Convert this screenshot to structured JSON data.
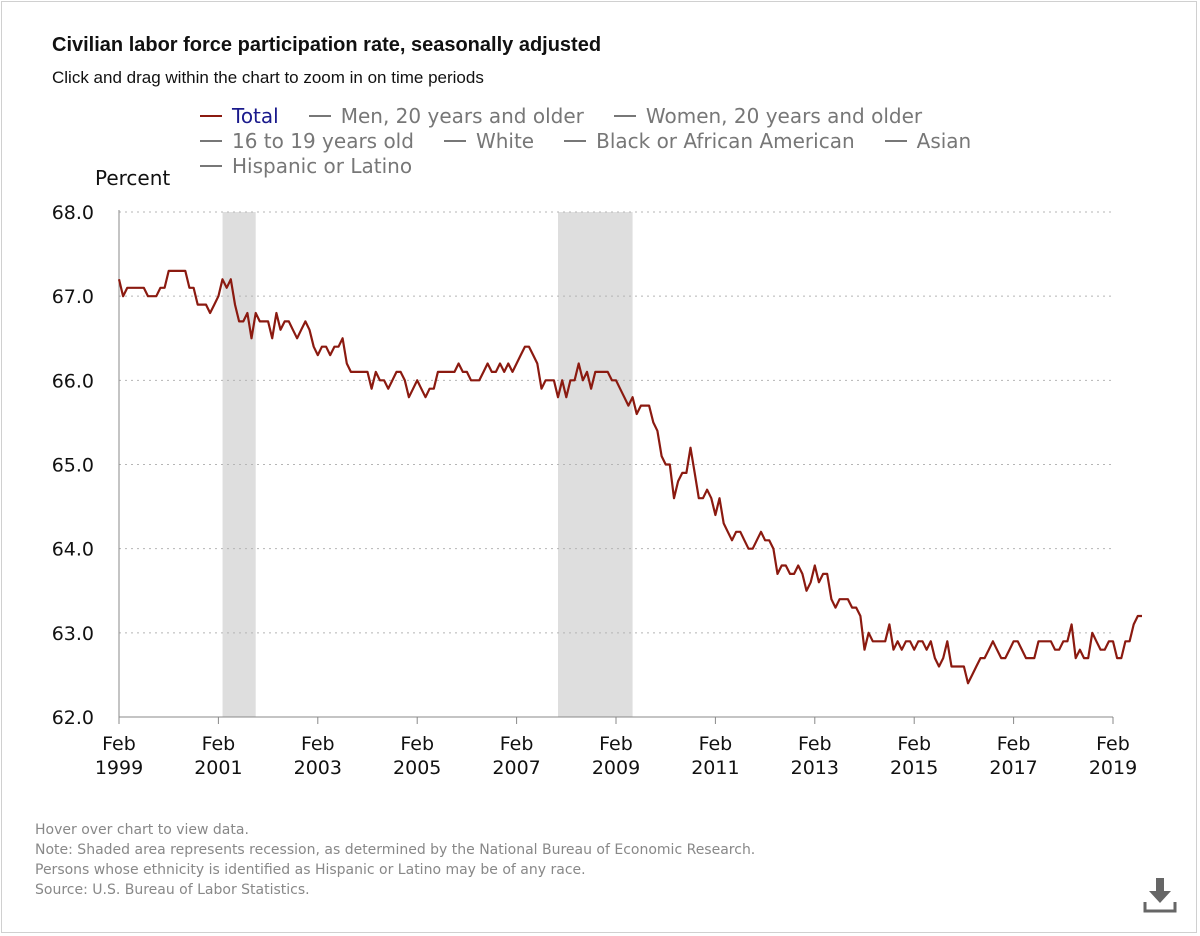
{
  "title": "Civilian labor force participation rate, seasonally adjusted",
  "subtitle": "Click and drag within the chart to zoom in on time periods",
  "legend": {
    "rows": [
      [
        {
          "label": "Total",
          "color": "#8b1a10",
          "active": true
        },
        {
          "label": "Men, 20 years and older",
          "color": "#777777",
          "active": false
        },
        {
          "label": "Women, 20 years and older",
          "color": "#777777",
          "active": false
        }
      ],
      [
        {
          "label": "16 to 19 years old",
          "color": "#777777",
          "active": false
        },
        {
          "label": "White",
          "color": "#777777",
          "active": false
        },
        {
          "label": "Black or African American",
          "color": "#777777",
          "active": false
        },
        {
          "label": "Asian",
          "color": "#777777",
          "active": false
        }
      ],
      [
        {
          "label": "Hispanic or Latino",
          "color": "#777777",
          "active": false
        }
      ]
    ]
  },
  "footer": {
    "lines": [
      "Hover over chart to view data.",
      "Note: Shaded area represents recession, as determined by the National Bureau of Economic Research.",
      "Persons whose ethnicity is identified as Hispanic or Latino may be of any race.",
      "Source: U.S. Bureau of Labor Statistics."
    ]
  },
  "icons": {
    "download": "download-icon"
  },
  "chart_data": {
    "type": "line",
    "title": "Civilian labor force participation rate, seasonally adjusted",
    "ylabel": "Percent",
    "xlabel": "",
    "ylim": [
      62.0,
      68.0
    ],
    "xlim": [
      "1999-02",
      "2019-02"
    ],
    "yticks": [
      "62.0",
      "63.0",
      "64.0",
      "65.0",
      "66.0",
      "67.0",
      "68.0"
    ],
    "xticks": [
      {
        "month": "Feb",
        "year": "1999"
      },
      {
        "month": "Feb",
        "year": "2001"
      },
      {
        "month": "Feb",
        "year": "2003"
      },
      {
        "month": "Feb",
        "year": "2005"
      },
      {
        "month": "Feb",
        "year": "2007"
      },
      {
        "month": "Feb",
        "year": "2009"
      },
      {
        "month": "Feb",
        "year": "2011"
      },
      {
        "month": "Feb",
        "year": "2013"
      },
      {
        "month": "Feb",
        "year": "2015"
      },
      {
        "month": "Feb",
        "year": "2017"
      },
      {
        "month": "Feb",
        "year": "2019"
      }
    ],
    "grid": "horizontal dotted",
    "legend_position": "top",
    "recessions": [
      {
        "start": "2001-03",
        "end": "2001-11"
      },
      {
        "start": "2007-12",
        "end": "2009-06"
      }
    ],
    "series": [
      {
        "name": "Total",
        "color": "#8b1a10",
        "points": [
          [
            "1999-02",
            67.2
          ],
          [
            "1999-03",
            67.0
          ],
          [
            "1999-04",
            67.1
          ],
          [
            "1999-05",
            67.1
          ],
          [
            "1999-06",
            67.1
          ],
          [
            "1999-07",
            67.1
          ],
          [
            "1999-08",
            67.1
          ],
          [
            "1999-09",
            67.0
          ],
          [
            "1999-10",
            67.0
          ],
          [
            "1999-11",
            67.0
          ],
          [
            "1999-12",
            67.1
          ],
          [
            "2000-01",
            67.1
          ],
          [
            "2000-02",
            67.3
          ],
          [
            "2000-03",
            67.3
          ],
          [
            "2000-04",
            67.3
          ],
          [
            "2000-05",
            67.3
          ],
          [
            "2000-06",
            67.3
          ],
          [
            "2000-07",
            67.1
          ],
          [
            "2000-08",
            67.1
          ],
          [
            "2000-09",
            66.9
          ],
          [
            "2000-10",
            66.9
          ],
          [
            "2000-11",
            66.9
          ],
          [
            "2000-12",
            66.8
          ],
          [
            "2001-01",
            66.9
          ],
          [
            "2001-02",
            67.0
          ],
          [
            "2001-03",
            67.2
          ],
          [
            "2001-04",
            67.1
          ],
          [
            "2001-05",
            67.2
          ],
          [
            "2001-06",
            66.9
          ],
          [
            "2001-07",
            66.7
          ],
          [
            "2001-08",
            66.7
          ],
          [
            "2001-09",
            66.8
          ],
          [
            "2001-10",
            66.5
          ],
          [
            "2001-11",
            66.8
          ],
          [
            "2001-12",
            66.7
          ],
          [
            "2002-01",
            66.7
          ],
          [
            "2002-02",
            66.7
          ],
          [
            "2002-03",
            66.5
          ],
          [
            "2002-04",
            66.8
          ],
          [
            "2002-05",
            66.6
          ],
          [
            "2002-06",
            66.7
          ],
          [
            "2002-07",
            66.7
          ],
          [
            "2002-08",
            66.6
          ],
          [
            "2002-09",
            66.5
          ],
          [
            "2002-10",
            66.6
          ],
          [
            "2002-11",
            66.7
          ],
          [
            "2002-12",
            66.6
          ],
          [
            "2003-01",
            66.4
          ],
          [
            "2003-02",
            66.3
          ],
          [
            "2003-03",
            66.4
          ],
          [
            "2003-04",
            66.4
          ],
          [
            "2003-05",
            66.3
          ],
          [
            "2003-06",
            66.4
          ],
          [
            "2003-07",
            66.4
          ],
          [
            "2003-08",
            66.5
          ],
          [
            "2003-09",
            66.2
          ],
          [
            "2003-10",
            66.1
          ],
          [
            "2003-11",
            66.1
          ],
          [
            "2003-12",
            66.1
          ],
          [
            "2004-01",
            66.1
          ],
          [
            "2004-02",
            66.1
          ],
          [
            "2004-03",
            65.9
          ],
          [
            "2004-04",
            66.1
          ],
          [
            "2004-05",
            66.0
          ],
          [
            "2004-06",
            66.0
          ],
          [
            "2004-07",
            65.9
          ],
          [
            "2004-08",
            66.0
          ],
          [
            "2004-09",
            66.1
          ],
          [
            "2004-10",
            66.1
          ],
          [
            "2004-11",
            66.0
          ],
          [
            "2004-12",
            65.8
          ],
          [
            "2005-01",
            65.9
          ],
          [
            "2005-02",
            66.0
          ],
          [
            "2005-03",
            65.9
          ],
          [
            "2005-04",
            65.8
          ],
          [
            "2005-05",
            65.9
          ],
          [
            "2005-06",
            65.9
          ],
          [
            "2005-07",
            66.1
          ],
          [
            "2005-08",
            66.1
          ],
          [
            "2005-09",
            66.1
          ],
          [
            "2005-10",
            66.1
          ],
          [
            "2005-11",
            66.1
          ],
          [
            "2005-12",
            66.2
          ],
          [
            "2006-01",
            66.1
          ],
          [
            "2006-02",
            66.1
          ],
          [
            "2006-03",
            66.0
          ],
          [
            "2006-04",
            66.0
          ],
          [
            "2006-05",
            66.0
          ],
          [
            "2006-06",
            66.1
          ],
          [
            "2006-07",
            66.2
          ],
          [
            "2006-08",
            66.1
          ],
          [
            "2006-09",
            66.1
          ],
          [
            "2006-10",
            66.2
          ],
          [
            "2006-11",
            66.1
          ],
          [
            "2006-12",
            66.2
          ],
          [
            "2007-01",
            66.1
          ],
          [
            "2007-02",
            66.2
          ],
          [
            "2007-03",
            66.3
          ],
          [
            "2007-04",
            66.4
          ],
          [
            "2007-05",
            66.4
          ],
          [
            "2007-06",
            66.3
          ],
          [
            "2007-07",
            66.2
          ],
          [
            "2007-08",
            65.9
          ],
          [
            "2007-09",
            66.0
          ],
          [
            "2007-10",
            66.0
          ],
          [
            "2007-11",
            66.0
          ],
          [
            "2007-12",
            65.8
          ],
          [
            "2008-01",
            66.0
          ],
          [
            "2008-02",
            65.8
          ],
          [
            "2008-03",
            66.0
          ],
          [
            "2008-04",
            66.0
          ],
          [
            "2008-05",
            66.2
          ],
          [
            "2008-06",
            66.0
          ],
          [
            "2008-07",
            66.1
          ],
          [
            "2008-08",
            65.9
          ],
          [
            "2008-09",
            66.1
          ],
          [
            "2008-10",
            66.1
          ],
          [
            "2008-11",
            66.1
          ],
          [
            "2008-12",
            66.1
          ],
          [
            "2009-01",
            66.0
          ],
          [
            "2009-02",
            66.0
          ],
          [
            "2009-03",
            65.9
          ],
          [
            "2009-04",
            65.8
          ],
          [
            "2009-05",
            65.7
          ],
          [
            "2009-06",
            65.8
          ],
          [
            "2009-07",
            65.6
          ],
          [
            "2009-08",
            65.7
          ],
          [
            "2009-09",
            65.7
          ],
          [
            "2009-10",
            65.7
          ],
          [
            "2009-11",
            65.5
          ],
          [
            "2009-12",
            65.4
          ],
          [
            "2010-01",
            65.1
          ],
          [
            "2010-02",
            65.0
          ],
          [
            "2010-03",
            65.0
          ],
          [
            "2010-04",
            64.6
          ],
          [
            "2010-05",
            64.8
          ],
          [
            "2010-06",
            64.9
          ],
          [
            "2010-07",
            64.9
          ],
          [
            "2010-08",
            65.2
          ],
          [
            "2010-09",
            64.9
          ],
          [
            "2010-10",
            64.6
          ],
          [
            "2010-11",
            64.6
          ],
          [
            "2010-12",
            64.7
          ],
          [
            "2011-01",
            64.6
          ],
          [
            "2011-02",
            64.4
          ],
          [
            "2011-03",
            64.6
          ],
          [
            "2011-04",
            64.3
          ],
          [
            "2011-05",
            64.2
          ],
          [
            "2011-06",
            64.1
          ],
          [
            "2011-07",
            64.2
          ],
          [
            "2011-08",
            64.2
          ],
          [
            "2011-09",
            64.1
          ],
          [
            "2011-10",
            64.0
          ],
          [
            "2011-11",
            64.0
          ],
          [
            "2011-12",
            64.1
          ],
          [
            "2012-01",
            64.2
          ],
          [
            "2012-02",
            64.1
          ],
          [
            "2012-03",
            64.1
          ],
          [
            "2012-04",
            64.0
          ],
          [
            "2012-05",
            63.7
          ],
          [
            "2012-06",
            63.8
          ],
          [
            "2012-07",
            63.8
          ],
          [
            "2012-08",
            63.7
          ],
          [
            "2012-09",
            63.7
          ],
          [
            "2012-10",
            63.8
          ],
          [
            "2012-11",
            63.7
          ],
          [
            "2012-12",
            63.5
          ],
          [
            "2013-01",
            63.6
          ],
          [
            "2013-02",
            63.8
          ],
          [
            "2013-03",
            63.6
          ],
          [
            "2013-04",
            63.7
          ],
          [
            "2013-05",
            63.7
          ],
          [
            "2013-06",
            63.4
          ],
          [
            "2013-07",
            63.3
          ],
          [
            "2013-08",
            63.4
          ],
          [
            "2013-09",
            63.4
          ],
          [
            "2013-10",
            63.4
          ],
          [
            "2013-11",
            63.3
          ],
          [
            "2013-12",
            63.3
          ],
          [
            "2014-01",
            63.2
          ],
          [
            "2014-02",
            62.8
          ],
          [
            "2014-03",
            63.0
          ],
          [
            "2014-04",
            62.9
          ],
          [
            "2014-05",
            62.9
          ],
          [
            "2014-06",
            62.9
          ],
          [
            "2014-07",
            62.9
          ],
          [
            "2014-08",
            63.1
          ],
          [
            "2014-09",
            62.8
          ],
          [
            "2014-10",
            62.9
          ],
          [
            "2014-11",
            62.8
          ],
          [
            "2014-12",
            62.9
          ],
          [
            "2015-01",
            62.9
          ],
          [
            "2015-02",
            62.8
          ],
          [
            "2015-03",
            62.9
          ],
          [
            "2015-04",
            62.9
          ],
          [
            "2015-05",
            62.8
          ],
          [
            "2015-06",
            62.9
          ],
          [
            "2015-07",
            62.7
          ],
          [
            "2015-08",
            62.6
          ],
          [
            "2015-09",
            62.7
          ],
          [
            "2015-10",
            62.9
          ],
          [
            "2015-11",
            62.6
          ],
          [
            "2015-12",
            62.6
          ],
          [
            "2016-01",
            62.6
          ],
          [
            "2016-02",
            62.6
          ],
          [
            "2016-03",
            62.4
          ],
          [
            "2016-04",
            62.5
          ],
          [
            "2016-05",
            62.6
          ],
          [
            "2016-06",
            62.7
          ],
          [
            "2016-07",
            62.7
          ],
          [
            "2016-08",
            62.8
          ],
          [
            "2016-09",
            62.9
          ],
          [
            "2016-10",
            62.8
          ],
          [
            "2016-11",
            62.7
          ],
          [
            "2016-12",
            62.7
          ],
          [
            "2017-01",
            62.8
          ],
          [
            "2017-02",
            62.9
          ],
          [
            "2017-03",
            62.9
          ],
          [
            "2017-04",
            62.8
          ],
          [
            "2017-05",
            62.7
          ],
          [
            "2017-06",
            62.7
          ],
          [
            "2017-07",
            62.7
          ],
          [
            "2017-08",
            62.9
          ],
          [
            "2017-09",
            62.9
          ],
          [
            "2017-10",
            62.9
          ],
          [
            "2017-11",
            62.9
          ],
          [
            "2017-12",
            62.8
          ],
          [
            "2018-01",
            62.8
          ],
          [
            "2018-02",
            62.9
          ],
          [
            "2018-03",
            62.9
          ],
          [
            "2018-04",
            63.1
          ],
          [
            "2018-05",
            62.7
          ],
          [
            "2018-06",
            62.8
          ],
          [
            "2018-07",
            62.7
          ],
          [
            "2018-08",
            62.7
          ],
          [
            "2018-09",
            63.0
          ],
          [
            "2018-10",
            62.9
          ],
          [
            "2018-11",
            62.8
          ],
          [
            "2018-12",
            62.8
          ],
          [
            "2019-01",
            62.9
          ],
          [
            "2019-02",
            62.9
          ],
          [
            "2019-03",
            62.7
          ],
          [
            "2019-04",
            62.7
          ],
          [
            "2019-05",
            62.9
          ],
          [
            "2019-06",
            62.9
          ],
          [
            "2019-07",
            63.1
          ],
          [
            "2019-08",
            63.2
          ],
          [
            "2019-09",
            63.2
          ]
        ]
      }
    ]
  }
}
